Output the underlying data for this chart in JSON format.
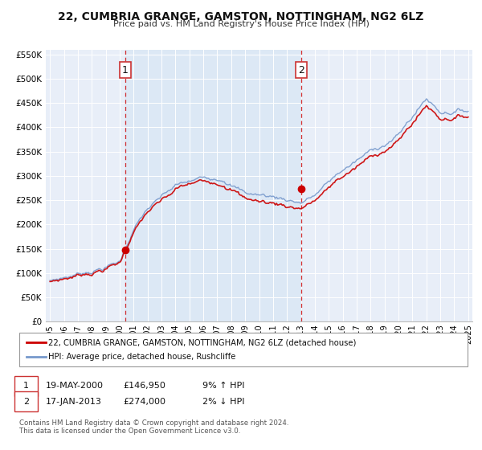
{
  "title": "22, CUMBRIA GRANGE, GAMSTON, NOTTINGHAM, NG2 6LZ",
  "subtitle": "Price paid vs. HM Land Registry's House Price Index (HPI)",
  "legend_label_red": "22, CUMBRIA GRANGE, GAMSTON, NOTTINGHAM, NG2 6LZ (detached house)",
  "legend_label_blue": "HPI: Average price, detached house, Rushcliffe",
  "annotation1_label": "1",
  "annotation1_date": "19-MAY-2000",
  "annotation1_price": "£146,950",
  "annotation1_hpi": "9% ↑ HPI",
  "annotation2_label": "2",
  "annotation2_date": "17-JAN-2013",
  "annotation2_price": "£274,000",
  "annotation2_hpi": "2% ↓ HPI",
  "footer1": "Contains HM Land Registry data © Crown copyright and database right 2024.",
  "footer2": "This data is licensed under the Open Government Licence v3.0.",
  "red_color": "#cc0000",
  "blue_color": "#7799cc",
  "fill_color": "#dce8f5",
  "background_color": "#e8eef8",
  "grid_color": "#ffffff",
  "ylim": [
    0,
    560000
  ],
  "yticks": [
    0,
    50000,
    100000,
    150000,
    200000,
    250000,
    300000,
    350000,
    400000,
    450000,
    500000,
    550000
  ],
  "ytick_labels": [
    "£0",
    "£50K",
    "£100K",
    "£150K",
    "£200K",
    "£250K",
    "£300K",
    "£350K",
    "£400K",
    "£450K",
    "£500K",
    "£550K"
  ],
  "marker1_x": 2000.38,
  "marker1_y": 146950,
  "marker2_x": 2013.04,
  "marker2_y": 274000,
  "vline1_x": 2000.38,
  "vline2_x": 2013.04,
  "xlim": [
    1994.7,
    2025.3
  ],
  "xticks": [
    1995,
    1996,
    1997,
    1998,
    1999,
    2000,
    2001,
    2002,
    2003,
    2004,
    2005,
    2006,
    2007,
    2008,
    2009,
    2010,
    2011,
    2012,
    2013,
    2014,
    2015,
    2016,
    2017,
    2018,
    2019,
    2020,
    2021,
    2022,
    2023,
    2024,
    2025
  ]
}
